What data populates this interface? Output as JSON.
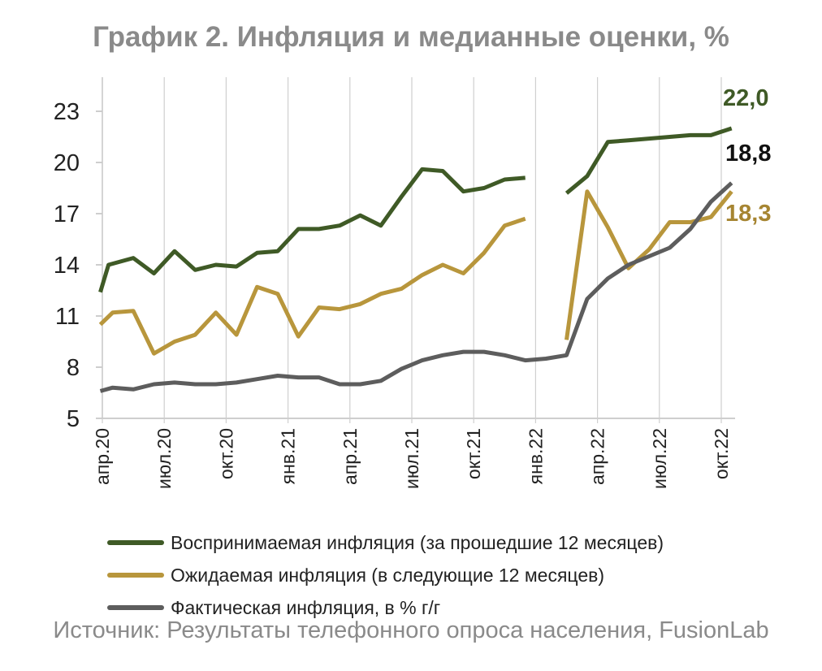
{
  "chart_data": {
    "type": "line",
    "title": "График 2. Инфляция и медианные оценки, %",
    "ylim": [
      5,
      23
    ],
    "yticks": [
      "5",
      "8",
      "11",
      "14",
      "17",
      "20",
      "23"
    ],
    "x_tick_labels": [
      "апр.20",
      "июл.20",
      "окт.20",
      "янв.21",
      "апр.21",
      "июл.21",
      "окт.21",
      "янв.22",
      "апр.22",
      "июл.22",
      "окт.22"
    ],
    "x_tick_months": [
      0,
      3,
      6,
      9,
      12,
      15,
      18,
      21,
      24,
      27,
      30
    ],
    "grid": false,
    "legend_position": "bottom",
    "series": [
      {
        "name": "Воспринимаемая инфляция (за прошедшие 12 месяцев)",
        "color": "#3f5a26",
        "end_label": "22,0",
        "points": [
          [
            -0.1,
            12.4
          ],
          [
            0.3,
            14.0
          ],
          [
            1.5,
            14.4
          ],
          [
            2.5,
            13.5
          ],
          [
            3.5,
            14.8
          ],
          [
            4.5,
            13.7
          ],
          [
            5.5,
            14.0
          ],
          [
            6.5,
            13.9
          ],
          [
            7.5,
            14.7
          ],
          [
            8.5,
            14.8
          ],
          [
            9.5,
            16.1
          ],
          [
            10.5,
            16.1
          ],
          [
            11.5,
            16.3
          ],
          [
            12.5,
            16.9
          ],
          [
            13.5,
            16.3
          ],
          [
            14.5,
            18.0
          ],
          [
            15.5,
            19.6
          ],
          [
            16.5,
            19.5
          ],
          [
            17.5,
            18.3
          ],
          [
            18.5,
            18.5
          ],
          [
            19.5,
            19.0
          ],
          [
            20.5,
            19.1
          ],
          null,
          [
            22.5,
            18.2
          ],
          [
            23.5,
            19.2
          ],
          [
            24.5,
            21.2
          ],
          [
            25.5,
            21.3
          ],
          [
            26.5,
            21.4
          ],
          [
            27.5,
            21.5
          ],
          [
            28.5,
            21.6
          ],
          [
            29.5,
            21.6
          ],
          [
            30.5,
            22.0
          ]
        ]
      },
      {
        "name": "Ожидаемая инфляция (в следующие 12 месяцев)",
        "color": "#b8963c",
        "end_label": "18,3",
        "points": [
          [
            -0.1,
            10.5
          ],
          [
            0.5,
            11.2
          ],
          [
            1.5,
            11.3
          ],
          [
            2.5,
            8.8
          ],
          [
            3.5,
            9.5
          ],
          [
            4.5,
            9.9
          ],
          [
            5.5,
            11.2
          ],
          [
            6.5,
            9.9
          ],
          [
            7.5,
            12.7
          ],
          [
            8.5,
            12.3
          ],
          [
            9.5,
            9.8
          ],
          [
            10.5,
            11.5
          ],
          [
            11.5,
            11.4
          ],
          [
            12.5,
            11.7
          ],
          [
            13.5,
            12.3
          ],
          [
            14.5,
            12.6
          ],
          [
            15.5,
            13.4
          ],
          [
            16.5,
            14.0
          ],
          [
            17.5,
            13.5
          ],
          [
            18.5,
            14.7
          ],
          [
            19.5,
            16.3
          ],
          [
            20.5,
            16.7
          ],
          null,
          [
            22.5,
            9.6
          ],
          [
            23.5,
            18.3
          ],
          [
            24.5,
            16.2
          ],
          [
            25.5,
            13.8
          ],
          [
            26.5,
            14.9
          ],
          [
            27.5,
            16.5
          ],
          [
            28.5,
            16.5
          ],
          [
            29.5,
            16.8
          ],
          [
            30.5,
            18.3
          ]
        ]
      },
      {
        "name": "Фактическая инфляция, в % г/г",
        "color": "#5d5d5d",
        "end_label": "18,8",
        "points": [
          [
            -0.1,
            6.6
          ],
          [
            0.5,
            6.8
          ],
          [
            1.5,
            6.7
          ],
          [
            2.5,
            7.0
          ],
          [
            3.5,
            7.1
          ],
          [
            4.5,
            7.0
          ],
          [
            5.5,
            7.0
          ],
          [
            6.5,
            7.1
          ],
          [
            7.5,
            7.3
          ],
          [
            8.5,
            7.5
          ],
          [
            9.5,
            7.4
          ],
          [
            10.5,
            7.4
          ],
          [
            11.5,
            7.0
          ],
          [
            12.5,
            7.0
          ],
          [
            13.5,
            7.2
          ],
          [
            14.5,
            7.9
          ],
          [
            15.5,
            8.4
          ],
          [
            16.5,
            8.7
          ],
          [
            17.5,
            8.9
          ],
          [
            18.5,
            8.9
          ],
          [
            19.5,
            8.7
          ],
          [
            20.5,
            8.4
          ],
          [
            21.5,
            8.5
          ],
          [
            22.5,
            8.7
          ],
          [
            23.5,
            12.0
          ],
          [
            24.5,
            13.2
          ],
          [
            25.5,
            14.0
          ],
          [
            26.5,
            14.5
          ],
          [
            27.5,
            15.0
          ],
          [
            28.5,
            16.1
          ],
          [
            29.5,
            17.7
          ],
          [
            30.5,
            18.8
          ]
        ]
      }
    ]
  },
  "source_text": "Источник: Результаты телефонного опроса населения, FusionLab"
}
